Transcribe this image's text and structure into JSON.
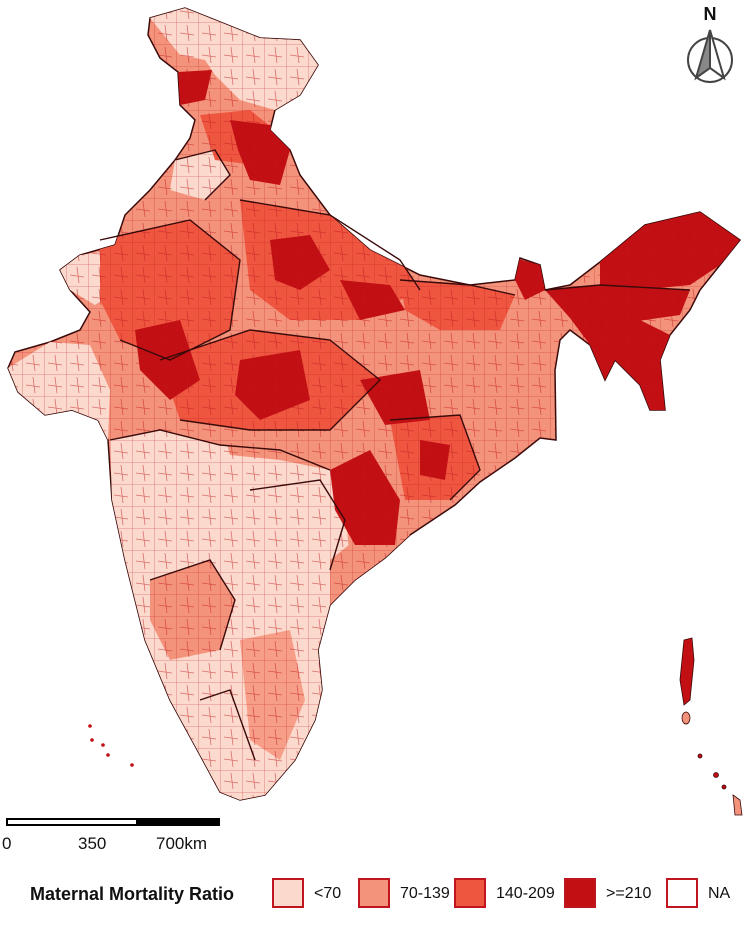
{
  "map": {
    "north_label": "N",
    "scale": {
      "ticks": [
        "0",
        "350",
        "700km"
      ]
    },
    "legend": {
      "title": "Maternal Mortality Ratio",
      "classes": [
        {
          "label": "<70",
          "color": "#fbd9cc"
        },
        {
          "label": "70-139",
          "color": "#f4937b"
        },
        {
          "label": "140-209",
          "color": "#ef5640"
        },
        {
          "label": ">=210",
          "color": "#c20f14"
        },
        {
          "label": "NA",
          "color": "#ffffff"
        }
      ]
    },
    "colors": {
      "district_border": "#c0151e",
      "state_border": "#3a0a0a",
      "background": "#ffffff"
    }
  }
}
